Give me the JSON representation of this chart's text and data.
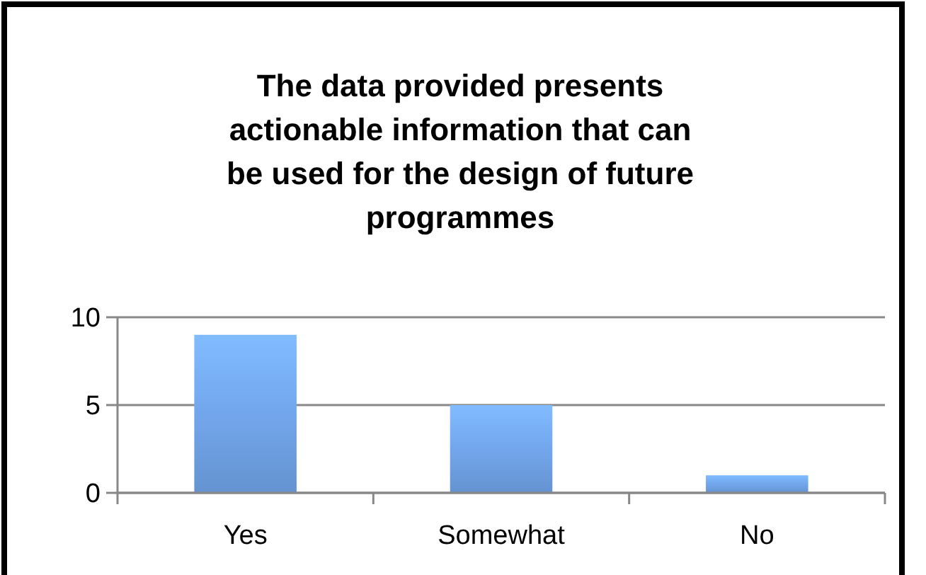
{
  "chart_data": {
    "type": "bar",
    "title": "The data provided presents actionable information that can be used for the design of future programmes",
    "categories": [
      "Yes",
      "Somewhat",
      "No"
    ],
    "values": [
      9,
      5,
      1
    ],
    "color": "#72a6ec",
    "ylim": [
      0,
      10
    ],
    "yticks": [
      0,
      5,
      10
    ],
    "grid": "y"
  }
}
